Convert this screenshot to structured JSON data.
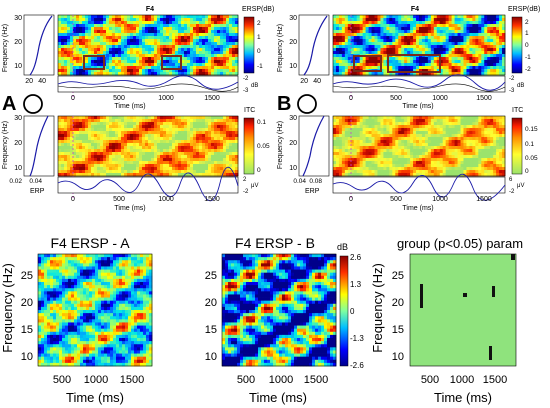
{
  "colors": {
    "heat_hi": "#8b1010",
    "heat_lo": "#00008b",
    "itc_green": "#9be36c",
    "sig_green": "#8fe37d",
    "box": "#7a2a1a",
    "curve": "#1a1aa8"
  },
  "top_panels": {
    "A": {
      "label": "A",
      "ersp_title": "F4",
      "ersp_cbar_label": "ERSP(dB)",
      "ersp_cbar_ticks": [
        "2",
        "1",
        "0",
        "-1"
      ],
      "ersp_side_ticks": [
        "20",
        "40"
      ],
      "ersp_side_db_ticks": [
        "-2",
        "-3"
      ],
      "ersp_side_db_label": "dB",
      "itc_cbar_label": "ITC",
      "itc_cbar_ticks": [
        "0.1",
        "0.05",
        "0"
      ],
      "itc_side_ticks": [
        "0.02",
        "0.04"
      ],
      "erp_label": "ERP",
      "erp_ticks": [
        "2",
        "-2"
      ],
      "erp_unit": "μV",
      "freq_label": "Frequency (Hz)",
      "freq_ticks": [
        "30",
        "20",
        "10"
      ],
      "time_ticks": [
        "0",
        "500",
        "1000",
        "1500"
      ],
      "time_label": "Time (ms)"
    },
    "B": {
      "label": "B",
      "ersp_title": "F4",
      "ersp_cbar_label": "ERSP(dB)",
      "ersp_cbar_ticks": [
        "2",
        "1",
        "0",
        "-1",
        "-2"
      ],
      "ersp_side_ticks": [
        "20",
        "40"
      ],
      "ersp_side_db_ticks": [
        "-2",
        "-3"
      ],
      "ersp_side_db_label": "dB",
      "itc_cbar_label": "ITC",
      "itc_cbar_ticks": [
        "0.15",
        "0.1",
        "0.05",
        "0"
      ],
      "itc_side_ticks": [
        "0.04",
        "0.08"
      ],
      "erp_label": "ERP",
      "erp_ticks": [
        "6",
        "-2"
      ],
      "erp_unit": "μV",
      "freq_label": "Frequency (Hz)",
      "freq_ticks": [
        "30",
        "20",
        "10"
      ],
      "time_ticks": [
        "0",
        "500",
        "1000",
        "1500"
      ],
      "time_label": "Time (ms)"
    }
  },
  "bottom_panels": {
    "ersp_a": {
      "title": "F4 ERSP - A",
      "ylabel": "Frequency (Hz)",
      "xlabel": "Time (ms)",
      "yticks": [
        "25",
        "20",
        "15",
        "10"
      ],
      "xticks": [
        "500",
        "1000",
        "1500"
      ]
    },
    "ersp_b": {
      "title": "F4 ERSP - B",
      "xlabel": "Time (ms)",
      "yticks": [
        "25",
        "20",
        "15",
        "10"
      ],
      "xticks": [
        "500",
        "1000",
        "1500"
      ],
      "cbar_unit": "dB",
      "cbar_ticks": [
        "2.6",
        "1.3",
        "0",
        "-1.3",
        "-2.6"
      ]
    },
    "group": {
      "title": "group (p<0.05) param",
      "ylabel": "Frequency (Hz)",
      "xlabel": "Time (ms)",
      "yticks": [
        "25",
        "20",
        "15",
        "10"
      ],
      "xticks": [
        "500",
        "1000",
        "1500"
      ]
    }
  }
}
